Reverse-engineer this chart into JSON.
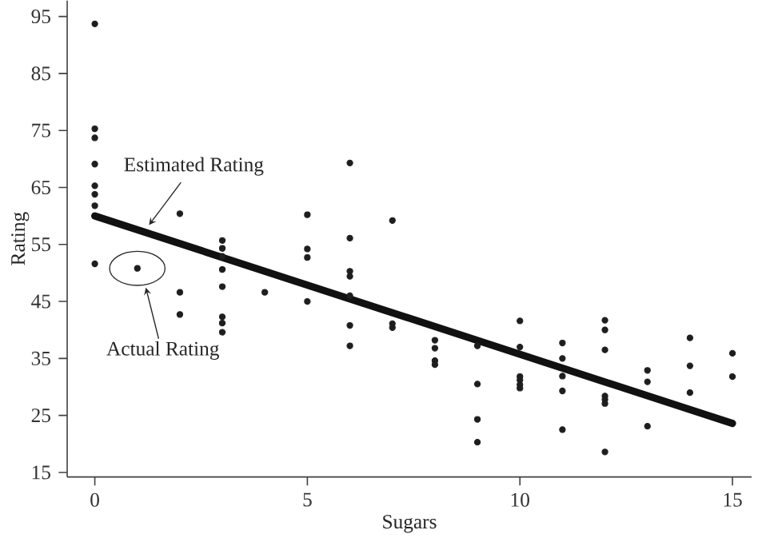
{
  "chart_data": {
    "type": "scatter",
    "xlabel": "Sugars",
    "ylabel": "Rating",
    "xlim": [
      -0.65,
      15.45
    ],
    "ylim": [
      14.2,
      97.8
    ],
    "xticks": [
      0,
      5,
      10,
      15
    ],
    "yticks": [
      15,
      25,
      35,
      45,
      55,
      65,
      75,
      85,
      95
    ],
    "grid": false,
    "series": [
      {
        "marker": "circle",
        "color": "#1e1e1e",
        "x": [
          0,
          0,
          0,
          0,
          0,
          0,
          0,
          0,
          1,
          2,
          2,
          2,
          3,
          3,
          3,
          3,
          3,
          3,
          3,
          3,
          4,
          5,
          5,
          5,
          5,
          6,
          6,
          6,
          6,
          6,
          6,
          6,
          7,
          7,
          7,
          8,
          8,
          8,
          8,
          9,
          9,
          9,
          9,
          10,
          10,
          10,
          10,
          10,
          10,
          11,
          11,
          11,
          11,
          11,
          12,
          12,
          12,
          12,
          12,
          12,
          12,
          13,
          13,
          13,
          14,
          14,
          14,
          15,
          15
        ],
        "values": [
          93.7,
          75.3,
          73.7,
          69.1,
          65.3,
          63.8,
          61.8,
          51.6,
          50.8,
          60.4,
          46.6,
          42.7,
          55.7,
          54.3,
          52.9,
          50.6,
          47.6,
          42.3,
          41.2,
          39.6,
          46.6,
          60.2,
          54.2,
          52.7,
          45.0,
          69.3,
          56.1,
          50.3,
          49.4,
          46.0,
          40.8,
          37.2,
          59.2,
          41.1,
          40.4,
          38.2,
          36.8,
          34.6,
          33.9,
          37.2,
          30.5,
          24.3,
          20.3,
          41.6,
          37.0,
          31.8,
          31.2,
          30.4,
          29.8,
          37.7,
          35.0,
          31.9,
          29.3,
          22.5,
          41.7,
          40.0,
          36.5,
          28.4,
          27.8,
          27.1,
          18.6,
          32.9,
          30.9,
          23.1,
          38.6,
          33.7,
          29.0,
          35.9,
          31.8
        ]
      },
      {
        "type": "line",
        "marker": "none",
        "line_style": "solid",
        "color": "#111111",
        "x": [
          0,
          15
        ],
        "values": [
          60.0,
          23.6
        ]
      }
    ],
    "annotations": [
      "Estimated Rating",
      "Actual Rating"
    ]
  }
}
